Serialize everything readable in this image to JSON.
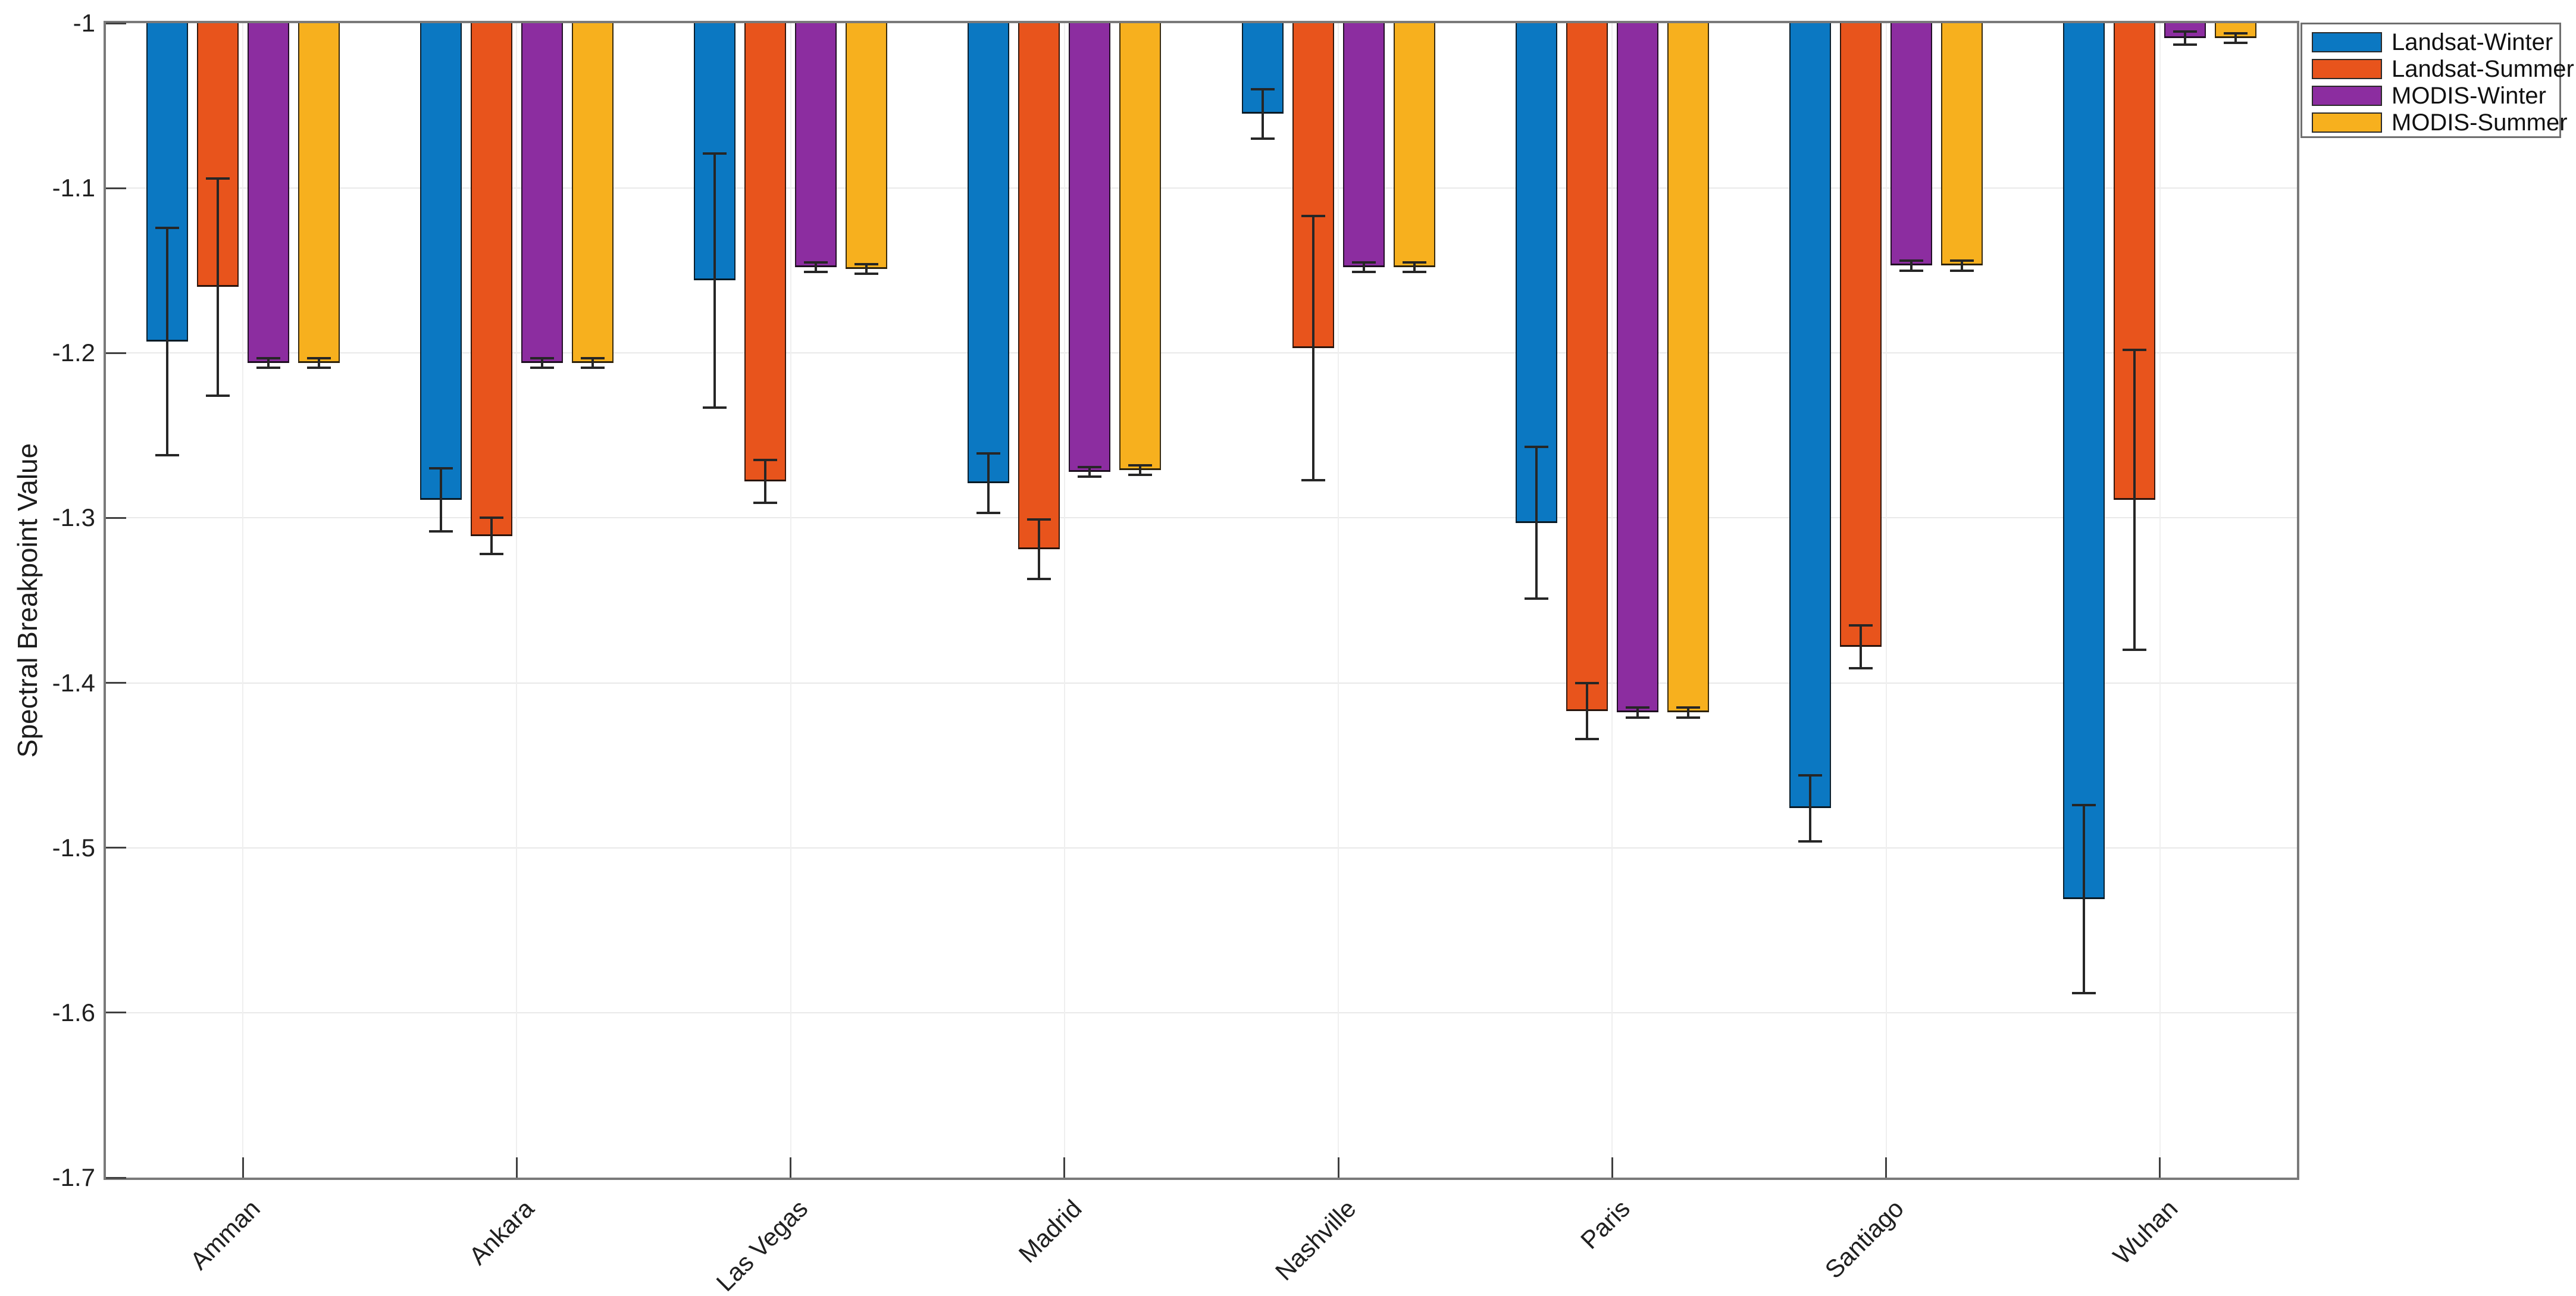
{
  "chart_data": {
    "type": "bar",
    "title": "",
    "xlabel": "",
    "ylabel": "Spectral Breakpoint Value",
    "categories": [
      "Amman",
      "Ankara",
      "Las Vegas",
      "Madrid",
      "Nashville",
      "Paris",
      "Santiago",
      "Wuhan"
    ],
    "series": [
      {
        "name": "Landsat-Winter",
        "color": "#0b78c2",
        "values": [
          -1.193,
          -1.289,
          -1.156,
          -1.279,
          -1.055,
          -1.303,
          -1.476,
          -1.531
        ],
        "errors": [
          0.069,
          0.019,
          0.077,
          0.018,
          0.015,
          0.046,
          0.02,
          0.057
        ]
      },
      {
        "name": "Landsat-Summer",
        "color": "#e8541c",
        "values": [
          -1.16,
          -1.311,
          -1.278,
          -1.319,
          -1.197,
          -1.417,
          -1.378,
          -1.289
        ],
        "errors": [
          0.066,
          0.011,
          0.013,
          0.018,
          0.08,
          0.017,
          0.013,
          0.091
        ]
      },
      {
        "name": "MODIS-Winter",
        "color": "#8c2da0",
        "values": [
          -1.206,
          -1.206,
          -1.148,
          -1.272,
          -1.148,
          -1.418,
          -1.147,
          -1.009
        ],
        "errors": [
          0.003,
          0.003,
          0.003,
          0.003,
          0.003,
          0.003,
          0.003,
          0.004
        ]
      },
      {
        "name": "MODIS-Summer",
        "color": "#f7b01e",
        "values": [
          -1.206,
          -1.206,
          -1.149,
          -1.271,
          -1.148,
          -1.418,
          -1.147,
          -1.009
        ],
        "errors": [
          0.003,
          0.003,
          0.003,
          0.003,
          0.003,
          0.003,
          0.003,
          0.003
        ]
      }
    ],
    "ylim": [
      -1.7,
      -1.0
    ],
    "yticks": [
      -1.0,
      -1.1,
      -1.2,
      -1.3,
      -1.4,
      -1.5,
      -1.6,
      -1.7
    ],
    "ytick_labels": [
      "-1",
      "-1.1",
      "-1.2",
      "-1.3",
      "-1.4",
      "-1.5",
      "-1.6",
      "-1.7"
    ],
    "grid": true,
    "legend_position": "top-right",
    "bar_edge_color": "#1a1a1a",
    "error_bar_color": "#262626"
  }
}
